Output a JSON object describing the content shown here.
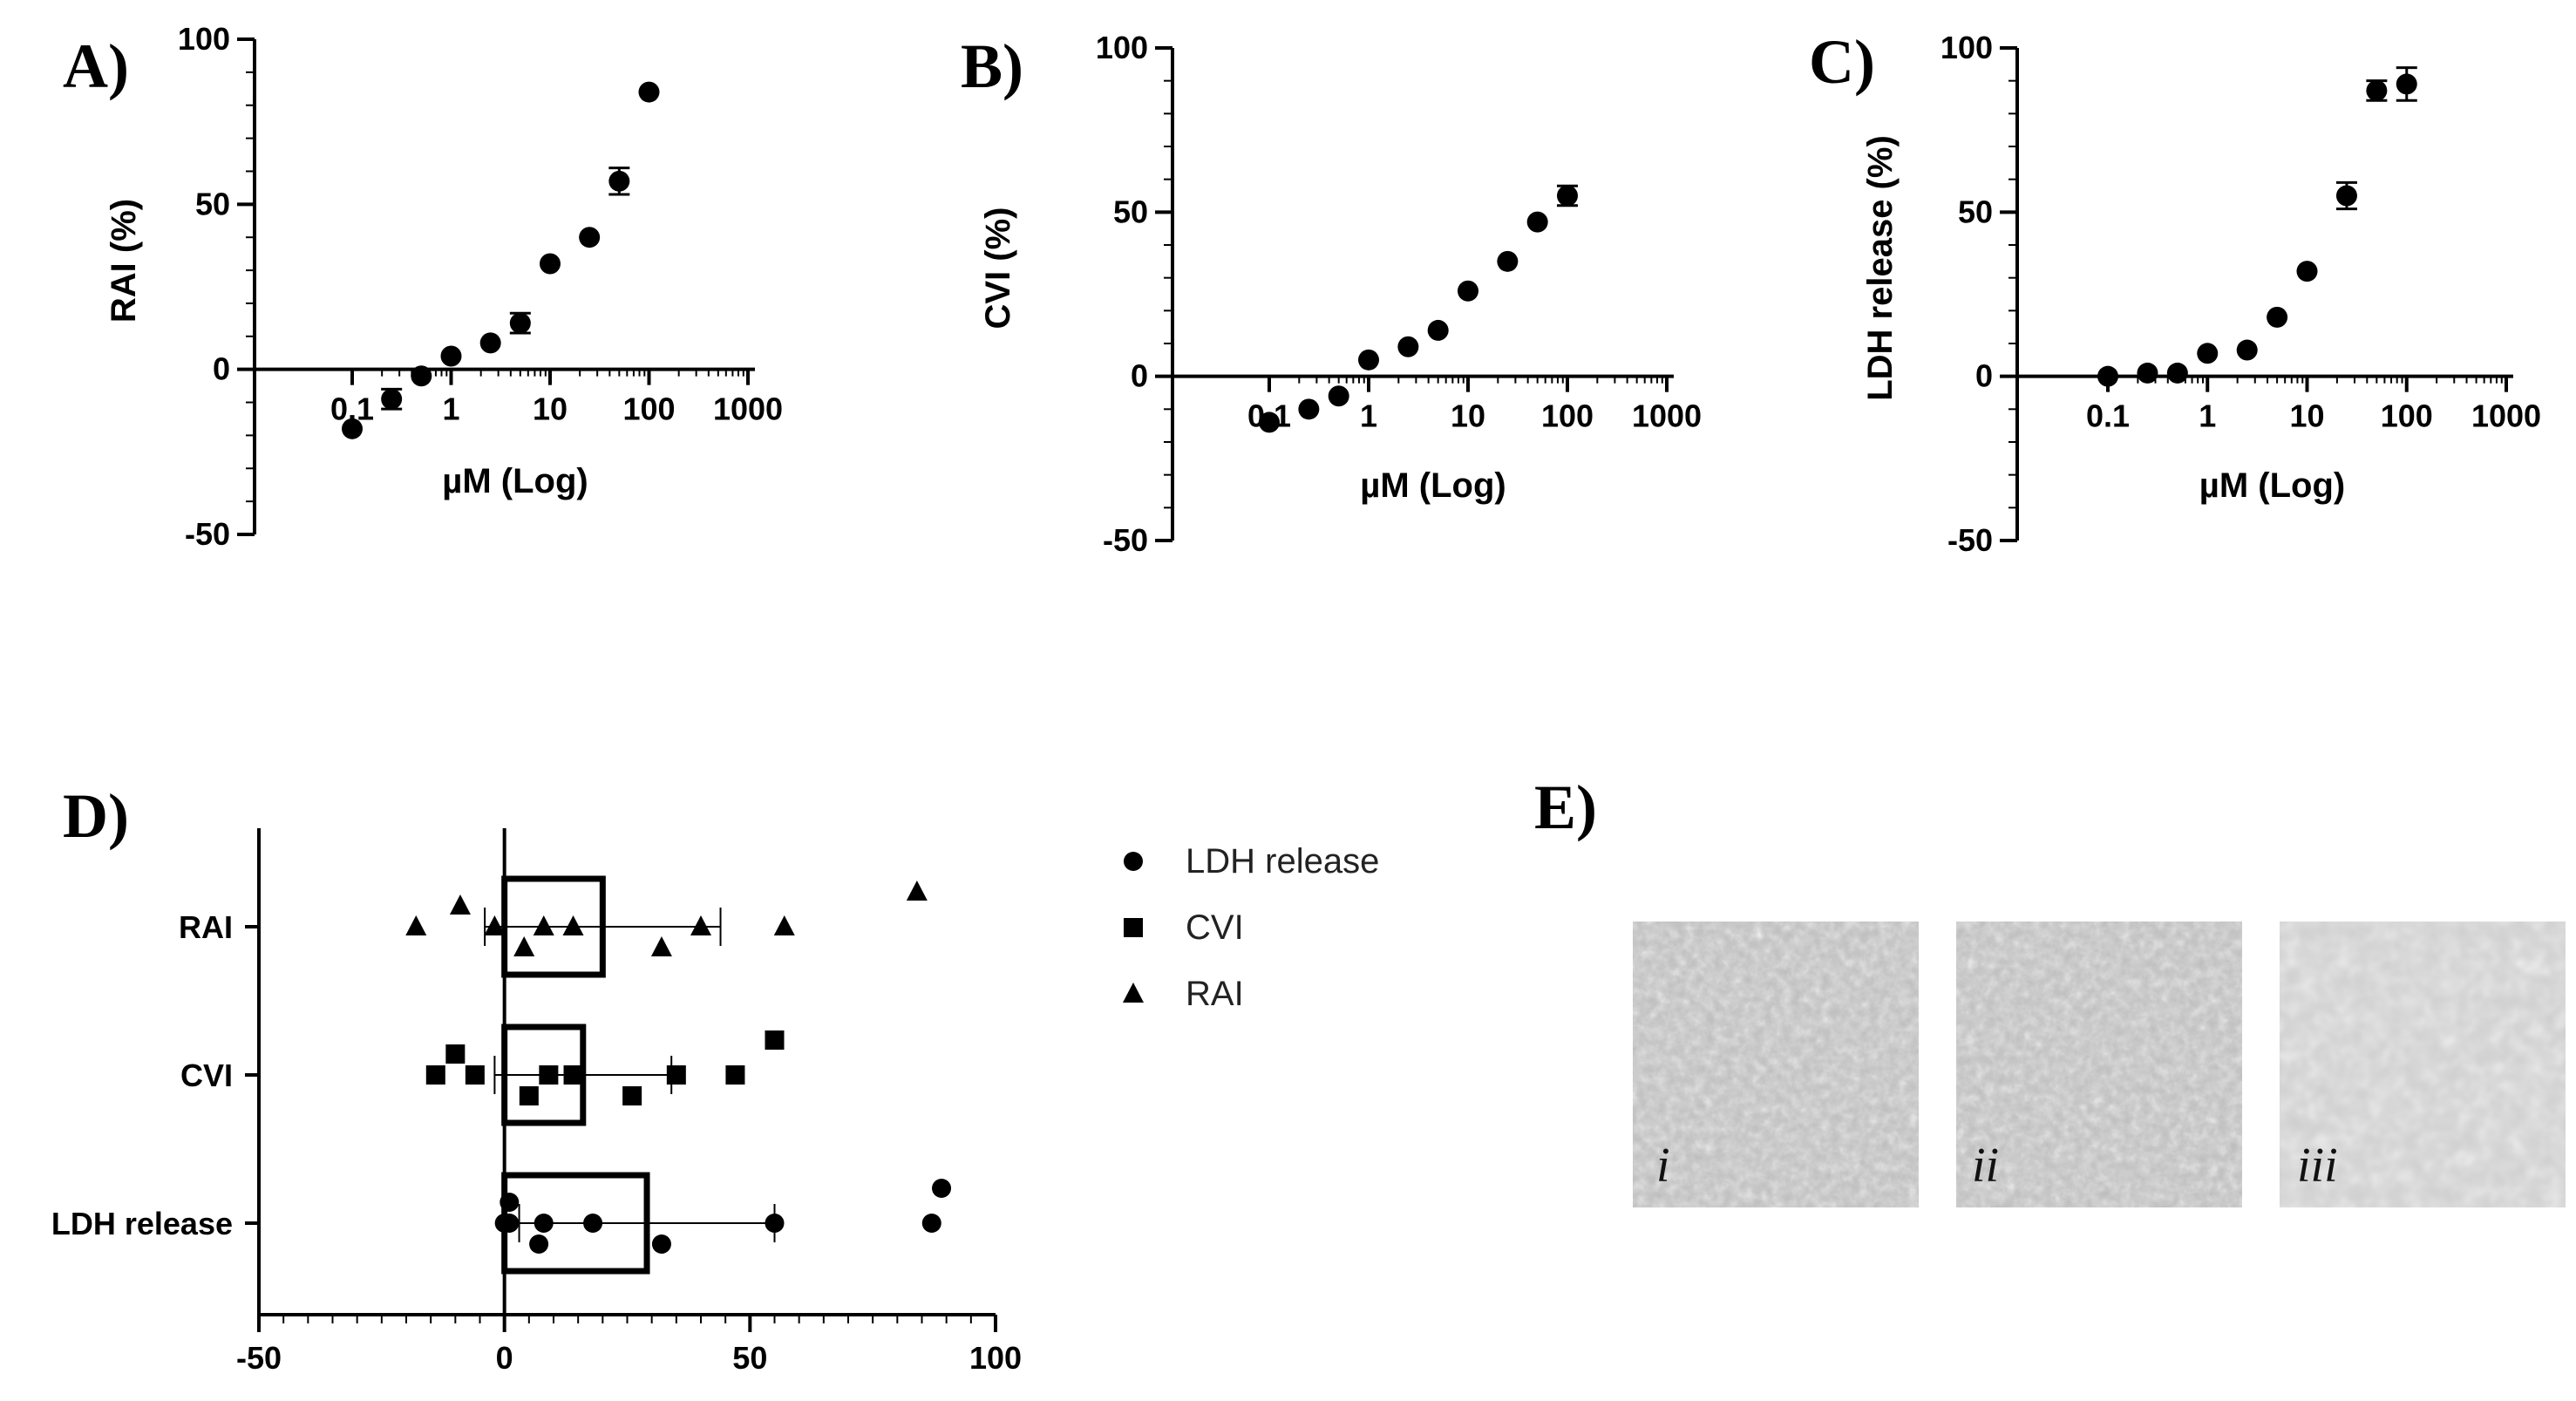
{
  "panels": {
    "A": "A)",
    "B": "B)",
    "C": "C)",
    "D": "D)",
    "E": "E)"
  },
  "chart_data": [
    {
      "id": "A",
      "type": "scatter",
      "xscale": "log",
      "xlabel": "µM (Log)",
      "ylabel": "RAI (%)",
      "ylim": [
        -50,
        100
      ],
      "yticks": [
        -50,
        0,
        50,
        100
      ],
      "xticks": [
        0.1,
        1,
        10,
        100,
        1000
      ],
      "xtick_labels": [
        "0.1",
        "1",
        "10",
        "100",
        "1000"
      ],
      "points": [
        {
          "x": 0.1,
          "y": -18,
          "err": 0
        },
        {
          "x": 0.25,
          "y": -9,
          "err": 3
        },
        {
          "x": 0.5,
          "y": -2,
          "err": 0
        },
        {
          "x": 1,
          "y": 4,
          "err": 0
        },
        {
          "x": 2.5,
          "y": 8,
          "err": 0
        },
        {
          "x": 5,
          "y": 14,
          "err": 3
        },
        {
          "x": 10,
          "y": 32,
          "err": 0
        },
        {
          "x": 25,
          "y": 40,
          "err": 0
        },
        {
          "x": 50,
          "y": 57,
          "err": 4
        },
        {
          "x": 100,
          "y": 84,
          "err": 0
        }
      ]
    },
    {
      "id": "B",
      "type": "scatter",
      "xscale": "log",
      "xlabel": "µM (Log)",
      "ylabel": "CVI (%)",
      "ylim": [
        -50,
        100
      ],
      "yticks": [
        -50,
        0,
        50,
        100
      ],
      "xticks": [
        0.1,
        1,
        10,
        100,
        1000
      ],
      "xtick_labels": [
        "0.1",
        "1",
        "10",
        "100",
        "1000"
      ],
      "points": [
        {
          "x": 0.1,
          "y": -14,
          "err": 0
        },
        {
          "x": 0.25,
          "y": -10,
          "err": 0
        },
        {
          "x": 0.5,
          "y": -6,
          "err": 0
        },
        {
          "x": 1,
          "y": 5,
          "err": 0
        },
        {
          "x": 2.5,
          "y": 9,
          "err": 0
        },
        {
          "x": 5,
          "y": 14,
          "err": 0
        },
        {
          "x": 10,
          "y": 26,
          "err": 0
        },
        {
          "x": 25,
          "y": 35,
          "err": 0
        },
        {
          "x": 50,
          "y": 47,
          "err": 0
        },
        {
          "x": 100,
          "y": 55,
          "err": 3
        }
      ]
    },
    {
      "id": "C",
      "type": "scatter",
      "xscale": "log",
      "xlabel": "µM (Log)",
      "ylabel": "LDH release (%)",
      "ylim": [
        -50,
        100
      ],
      "yticks": [
        -50,
        0,
        50,
        100
      ],
      "xticks": [
        0.1,
        1,
        10,
        100,
        1000
      ],
      "xtick_labels": [
        "0.1",
        "1",
        "10",
        "100",
        "1000"
      ],
      "points": [
        {
          "x": 0.1,
          "y": 0,
          "err": 0
        },
        {
          "x": 0.25,
          "y": 1,
          "err": 0
        },
        {
          "x": 0.5,
          "y": 1,
          "err": 0
        },
        {
          "x": 1,
          "y": 7,
          "err": 0
        },
        {
          "x": 2.5,
          "y": 8,
          "err": 0
        },
        {
          "x": 5,
          "y": 18,
          "err": 0
        },
        {
          "x": 10,
          "y": 32,
          "err": 0
        },
        {
          "x": 25,
          "y": 55,
          "err": 4
        },
        {
          "x": 50,
          "y": 87,
          "err": 3
        },
        {
          "x": 100,
          "y": 89,
          "err": 5
        }
      ]
    },
    {
      "id": "D",
      "type": "bar",
      "orientation": "horizontal",
      "categories": [
        "RAI",
        "CVI",
        "LDH release"
      ],
      "xlim": [
        -50,
        100
      ],
      "xticks": [
        -50,
        0,
        50,
        100
      ],
      "bars": [
        {
          "name": "RAI",
          "mean": 20,
          "sd": 24,
          "marker": "triangle",
          "points": [
            -18,
            -9,
            -2,
            4,
            8,
            14,
            32,
            40,
            57,
            84
          ]
        },
        {
          "name": "CVI",
          "mean": 16,
          "sd": 18,
          "marker": "square",
          "points": [
            -14,
            -10,
            -6,
            5,
            9,
            14,
            26,
            35,
            47,
            55
          ]
        },
        {
          "name": "LDH release",
          "mean": 29,
          "sd": 26,
          "marker": "circle",
          "points": [
            0,
            1,
            1,
            7,
            8,
            18,
            32,
            55,
            87,
            89
          ]
        }
      ],
      "legend": [
        {
          "label": "LDH release",
          "marker": "circle"
        },
        {
          "label": "CVI",
          "marker": "square"
        },
        {
          "label": "RAI",
          "marker": "triangle"
        }
      ],
      "legend_position": "right"
    }
  ],
  "micrographs": [
    {
      "label": "i"
    },
    {
      "label": "ii"
    },
    {
      "label": "iii"
    }
  ]
}
